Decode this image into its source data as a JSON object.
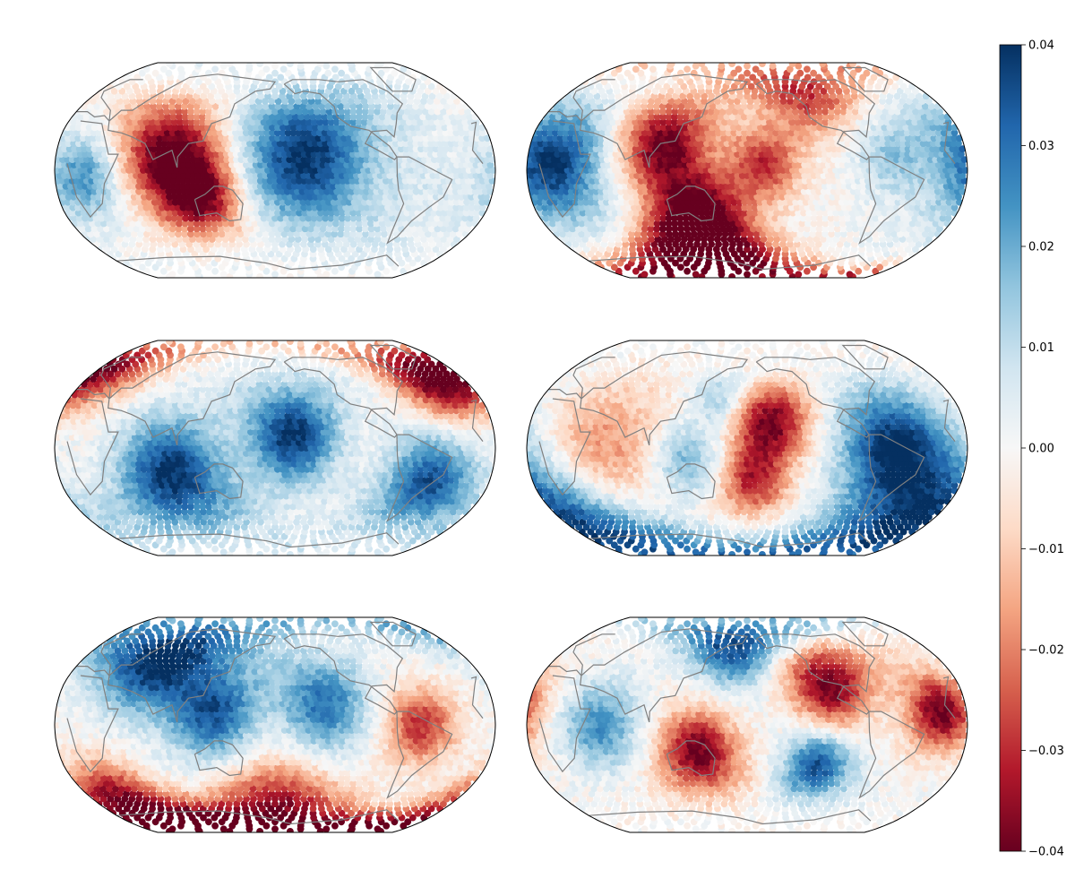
{
  "chart_data": {
    "type": "heatmap",
    "projection": "Robinson (global, Pacific-centered)",
    "layout": "3 rows x 2 columns of global maps sharing one colorbar",
    "coastline_color": "#808080",
    "marker": "filled circle per grid point",
    "colormap": {
      "name": "RdBu",
      "stops": [
        "#67001f",
        "#b2182b",
        "#d6604d",
        "#f4a582",
        "#fddbc7",
        "#f7f7f7",
        "#d1e5f0",
        "#92c5de",
        "#4393c3",
        "#2166ac",
        "#053061"
      ]
    },
    "colorbar": {
      "location": "right",
      "vmin": -0.04,
      "vmax": 0.04,
      "ticks": [
        -0.04,
        -0.03,
        -0.02,
        -0.01,
        0.0,
        0.01,
        0.02,
        0.03,
        0.04
      ],
      "tick_labels": [
        "−0.04",
        "−0.03",
        "−0.02",
        "−0.01",
        "0.00",
        "0.01",
        "0.02",
        "0.03",
        "0.04"
      ]
    },
    "panels": [
      {
        "row": 1,
        "col": 1,
        "pattern": [
          {
            "lon": 90,
            "lat": 15,
            "value": -0.04,
            "spread": 28
          },
          {
            "lon": 118,
            "lat": -18,
            "value": -0.04,
            "spread": 22
          },
          {
            "lon": 205,
            "lat": 10,
            "value": 0.04,
            "spread": 35
          },
          {
            "lon": 25,
            "lat": -5,
            "value": 0.025,
            "spread": 22
          },
          {
            "lon": 300,
            "lat": -10,
            "value": 0.005,
            "spread": 40
          }
        ]
      },
      {
        "row": 1,
        "col": 2,
        "pattern": [
          {
            "lon": 20,
            "lat": 5,
            "value": 0.04,
            "spread": 30
          },
          {
            "lon": 110,
            "lat": 20,
            "value": -0.04,
            "spread": 25
          },
          {
            "lon": 140,
            "lat": -35,
            "value": -0.04,
            "spread": 25
          },
          {
            "lon": 130,
            "lat": -70,
            "value": -0.04,
            "spread": 25
          },
          {
            "lon": 195,
            "lat": 5,
            "value": -0.03,
            "spread": 20
          },
          {
            "lon": 240,
            "lat": 60,
            "value": -0.03,
            "spread": 22
          },
          {
            "lon": 300,
            "lat": 10,
            "value": 0.015,
            "spread": 20
          }
        ]
      },
      {
        "row": 2,
        "col": 1,
        "pattern": [
          {
            "lon": 95,
            "lat": -20,
            "value": 0.04,
            "spread": 30
          },
          {
            "lon": 150,
            "lat": 0,
            "value": 0.0,
            "spread": 18
          },
          {
            "lon": 195,
            "lat": 10,
            "value": 0.04,
            "spread": 25
          },
          {
            "lon": 310,
            "lat": -25,
            "value": 0.035,
            "spread": 25
          },
          {
            "lon": 330,
            "lat": 50,
            "value": -0.04,
            "spread": 20
          },
          {
            "lon": 20,
            "lat": 55,
            "value": -0.02,
            "spread": 20
          }
        ]
      },
      {
        "row": 2,
        "col": 2,
        "pattern": [
          {
            "lon": 200,
            "lat": 20,
            "value": -0.04,
            "spread": 22
          },
          {
            "lon": 185,
            "lat": -25,
            "value": -0.03,
            "spread": 18
          },
          {
            "lon": 60,
            "lat": 0,
            "value": -0.02,
            "spread": 35
          },
          {
            "lon": 130,
            "lat": -10,
            "value": 0.02,
            "spread": 20
          },
          {
            "lon": 160,
            "lat": 40,
            "value": 0.02,
            "spread": 15
          },
          {
            "lon": 0,
            "lat": -60,
            "value": 0.04,
            "spread": 40
          },
          {
            "lon": 300,
            "lat": 0,
            "value": 0.04,
            "spread": 30
          }
        ]
      },
      {
        "row": 3,
        "col": 1,
        "pattern": [
          {
            "lon": 70,
            "lat": 50,
            "value": 0.04,
            "spread": 28
          },
          {
            "lon": 130,
            "lat": 10,
            "value": 0.035,
            "spread": 25
          },
          {
            "lon": 220,
            "lat": 15,
            "value": 0.03,
            "spread": 25
          },
          {
            "lon": 30,
            "lat": -60,
            "value": -0.04,
            "spread": 22
          },
          {
            "lon": 180,
            "lat": -70,
            "value": -0.04,
            "spread": 30
          },
          {
            "lon": 300,
            "lat": 0,
            "value": -0.03,
            "spread": 20
          }
        ]
      },
      {
        "row": 3,
        "col": 2,
        "pattern": [
          {
            "lon": 340,
            "lat": 10,
            "value": -0.04,
            "spread": 20
          },
          {
            "lon": 250,
            "lat": 30,
            "value": -0.04,
            "spread": 22
          },
          {
            "lon": 140,
            "lat": -20,
            "value": -0.04,
            "spread": 22
          },
          {
            "lon": 170,
            "lat": 60,
            "value": 0.04,
            "spread": 20
          },
          {
            "lon": 60,
            "lat": 0,
            "value": 0.025,
            "spread": 22
          },
          {
            "lon": 240,
            "lat": -30,
            "value": 0.035,
            "spread": 18
          }
        ]
      }
    ]
  }
}
